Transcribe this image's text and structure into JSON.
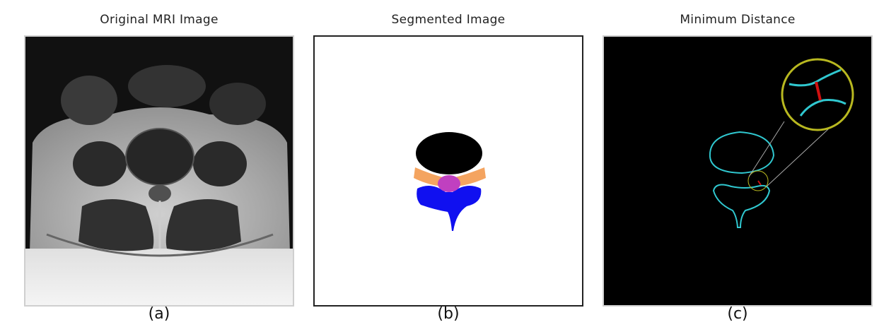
{
  "panels": [
    {
      "title": "Original MRI Image",
      "caption": "(a)"
    },
    {
      "title": "Segmented Image",
      "caption": "(b)"
    },
    {
      "title": "Minimum Distance",
      "caption": "(c)"
    }
  ],
  "colors": {
    "vertebral_body": "#000000",
    "facet": "#f4a460",
    "canal": "#c040c0",
    "posterior_element": "#1010f0",
    "contour": "#30c8d0",
    "min_distance": "#d01010",
    "zoom_circle": "#b8b820"
  }
}
